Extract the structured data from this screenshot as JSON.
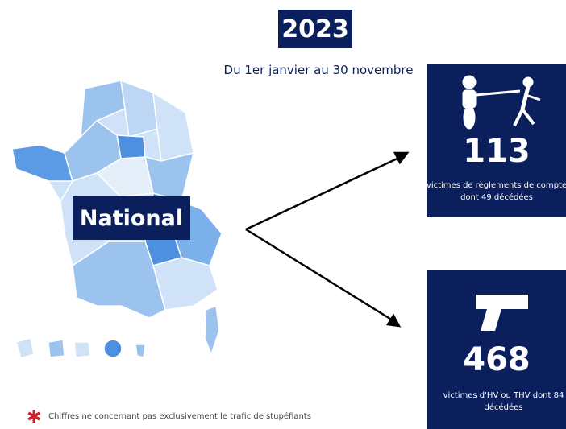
{
  "header": {
    "year": "2023",
    "period": "Du 1er janvier au 30 novembre"
  },
  "map": {
    "label": "National"
  },
  "cards": [
    {
      "number": 113,
      "caption": "victimes de règlements de compte dont 49 décédées"
    },
    {
      "number": 468,
      "caption": "victimes d'HV ou THV dont 84 décédées"
    }
  ],
  "footnote": "Chiffres ne concernant pas exclusivement le trafic de stupéfiants"
}
